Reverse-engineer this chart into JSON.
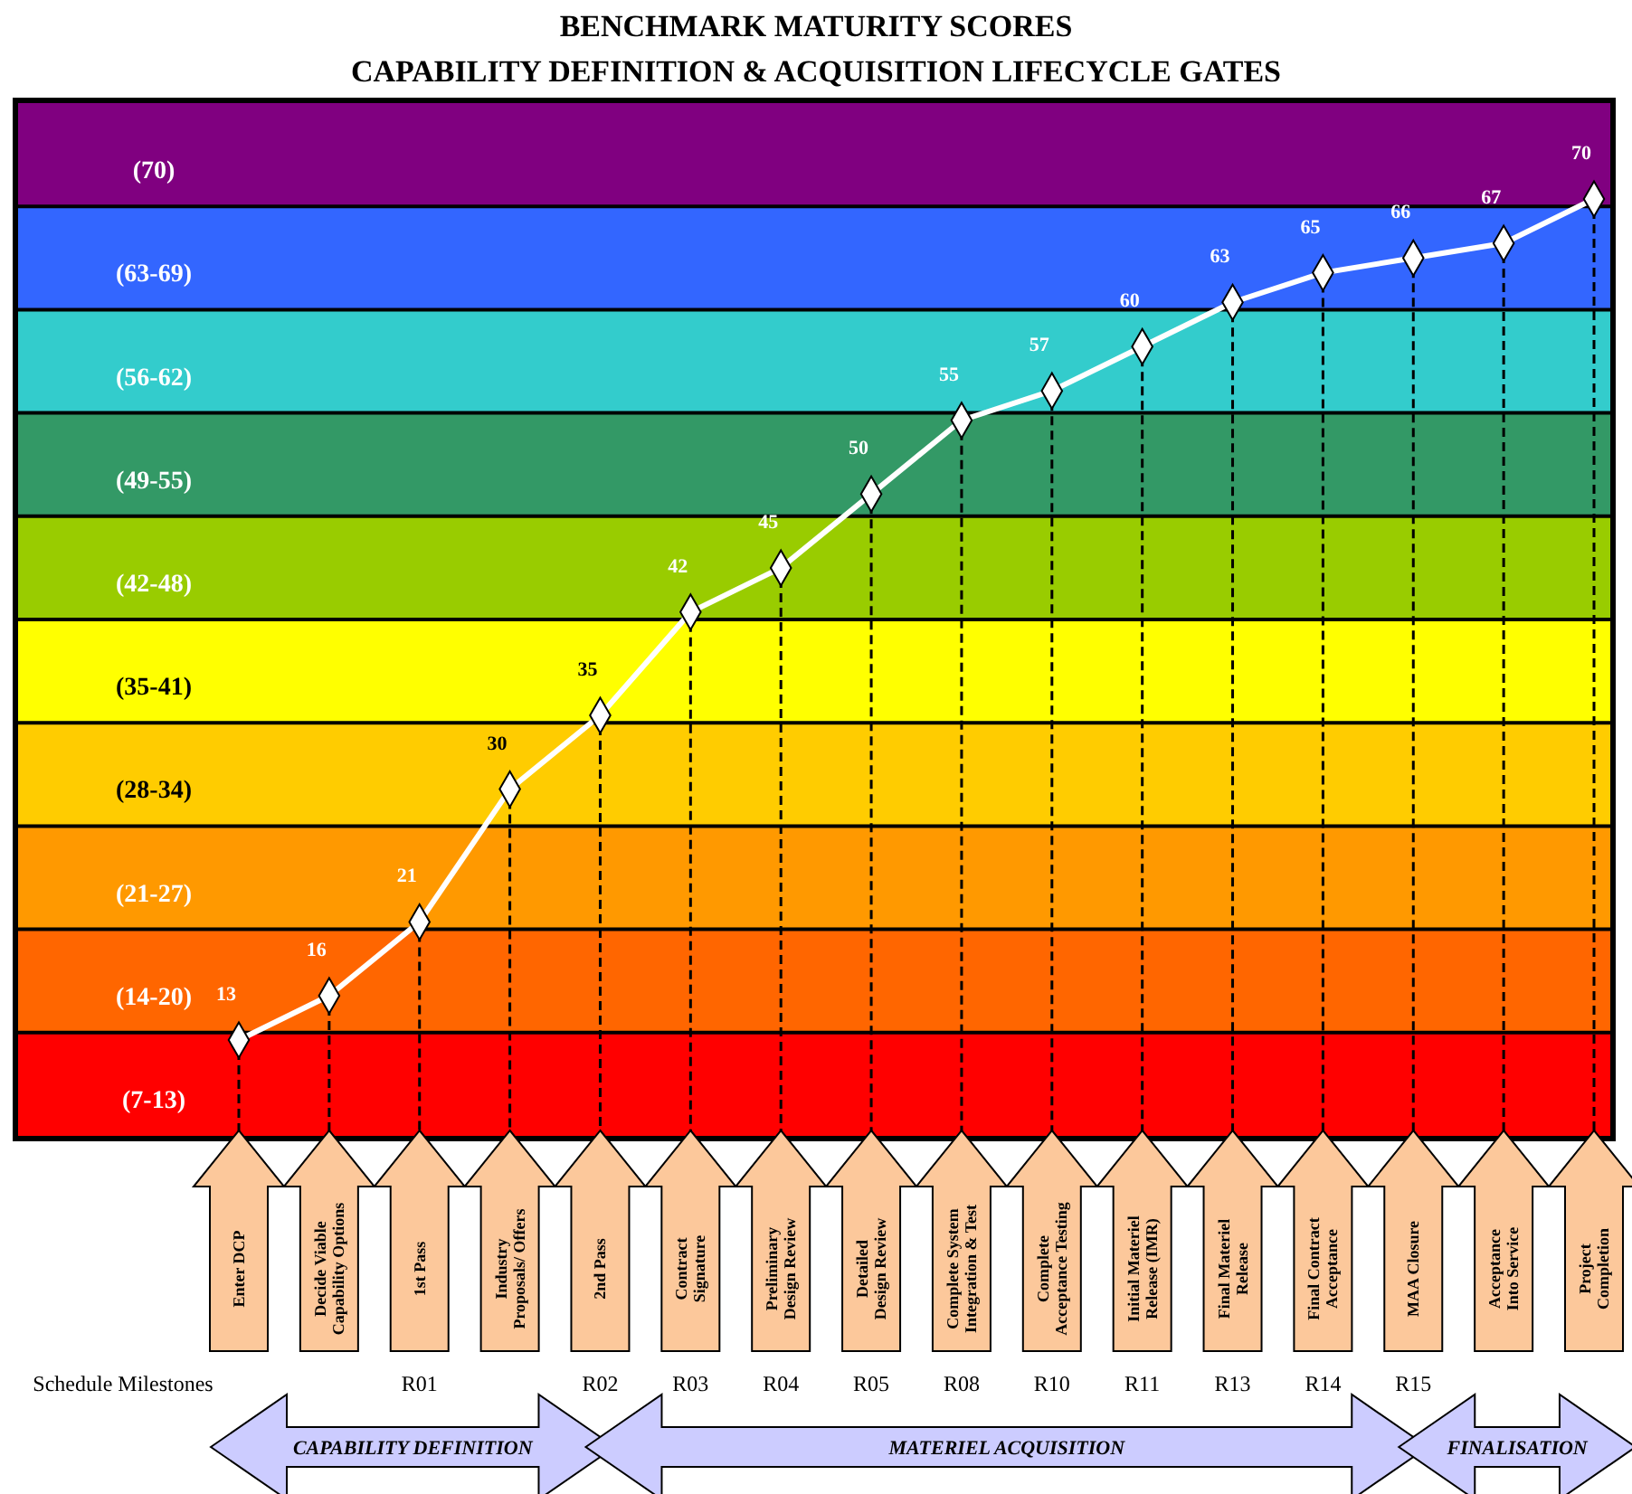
{
  "chart_data": {
    "type": "line",
    "title": "BENCHMARK MATURITY SCORES",
    "subtitle": "CAPABILITY DEFINITION & ACQUISITION LIFECYCLE GATES",
    "categories": [
      "Enter DCP",
      "Decide Viable Capability Options",
      "1st Pass",
      "Industry Proposals/ Offers",
      "2nd Pass",
      "Contract Signature",
      "Preliminary Design Review",
      "Detailed Design Review",
      "Complete System Integration & Test",
      "Complete Acceptance Testing",
      "Initial Materiel Release (IMR)",
      "Final Materiel Release",
      "Final Contract Acceptance",
      "MAA Closure",
      "Acceptance Into Service",
      "Project Completion"
    ],
    "series": [
      {
        "color": "#ffffff",
        "values": [
          13,
          16,
          21,
          30,
          35,
          42,
          45,
          50,
          55,
          57,
          60,
          63,
          65,
          66,
          67,
          70
        ]
      }
    ],
    "ylim": [
      6.5,
      76.5
    ],
    "yticks": [
      {
        "value": 13.5,
        "label": null
      },
      {
        "value": 20.5,
        "label": null
      },
      {
        "value": 27.5,
        "label": null
      },
      {
        "value": 34.5,
        "label": null
      },
      {
        "value": 41.5,
        "label": null
      },
      {
        "value": 48.5,
        "label": null
      },
      {
        "value": 55.5,
        "label": null
      },
      {
        "value": 62.5,
        "label": null
      },
      {
        "value": 69.5,
        "label": null
      }
    ],
    "grid": "y",
    "tick_labels": "x",
    "ref_lines": [
      {
        "axis": "x",
        "value": "Enter DCP",
        "line_style": "dashed",
        "color": "#000000"
      },
      {
        "axis": "x",
        "value": "Decide Viable Capability Options",
        "line_style": "dashed",
        "color": "#000000"
      },
      {
        "axis": "x",
        "value": "1st Pass",
        "line_style": "dashed",
        "color": "#000000"
      },
      {
        "axis": "x",
        "value": "Industry Proposals/ Offers",
        "line_style": "dashed",
        "color": "#000000"
      },
      {
        "axis": "x",
        "value": "2nd Pass",
        "line_style": "dashed",
        "color": "#000000"
      },
      {
        "axis": "x",
        "value": "Contract Signature",
        "line_style": "dashed",
        "color": "#000000"
      },
      {
        "axis": "x",
        "value": "Preliminary Design Review",
        "line_style": "dashed",
        "color": "#000000"
      },
      {
        "axis": "x",
        "value": "Detailed Design Review",
        "line_style": "dashed",
        "color": "#000000"
      },
      {
        "axis": "x",
        "value": "Complete System Integration & Test",
        "line_style": "dashed",
        "color": "#000000"
      },
      {
        "axis": "x",
        "value": "Complete Acceptance Testing",
        "line_style": "dashed",
        "color": "#000000"
      },
      {
        "axis": "x",
        "value": "Initial Materiel Release (IMR)",
        "line_style": "dashed",
        "color": "#000000"
      },
      {
        "axis": "x",
        "value": "Final Materiel Release",
        "line_style": "dashed",
        "color": "#000000"
      },
      {
        "axis": "x",
        "value": "Final Contract Acceptance",
        "line_style": "dashed",
        "color": "#000000"
      },
      {
        "axis": "x",
        "value": "MAA Closure",
        "line_style": "dashed",
        "color": "#000000"
      },
      {
        "axis": "x",
        "value": "Acceptance Into Service",
        "line_style": "dashed",
        "color": "#000000"
      },
      {
        "axis": "x",
        "value": "Project Completion",
        "line_style": "dashed",
        "color": "#000000"
      }
    ],
    "marker": "diamond",
    "line_style": "solid",
    "data_labels": true,
    "bands": [
      {
        "axis": "y",
        "from": 6.5,
        "to": 13.5,
        "label": "(7-13)",
        "color": "#ff0000"
      },
      {
        "axis": "y",
        "from": 13.5,
        "to": 20.5,
        "label": "(14-20)",
        "color": "#ff6600"
      },
      {
        "axis": "y",
        "from": 20.5,
        "to": 27.5,
        "label": "(21-27)",
        "color": "#ff9900"
      },
      {
        "axis": "y",
        "from": 27.5,
        "to": 34.5,
        "label": "(28-34)",
        "color": "#ffcc00"
      },
      {
        "axis": "y",
        "from": 34.5,
        "to": 41.5,
        "label": "(35-41)",
        "color": "#ffff00"
      },
      {
        "axis": "y",
        "from": 41.5,
        "to": 48.5,
        "label": "(42-48)",
        "color": "#99cc00"
      },
      {
        "axis": "y",
        "from": 48.5,
        "to": 55.5,
        "label": "(49-55)",
        "color": "#339966"
      },
      {
        "axis": "y",
        "from": 55.5,
        "to": 62.5,
        "label": "(56-62)",
        "color": "#33cccc"
      },
      {
        "axis": "y",
        "from": 62.5,
        "to": 69.5,
        "label": "(63-69)",
        "color": "#3366ff"
      },
      {
        "axis": "y",
        "from": 69.5,
        "to": 76.5,
        "label": "(70)",
        "color": "#800080"
      }
    ],
    "annotations": [
      "Schedule  Milestones",
      "R01",
      "R02",
      "R03",
      "R04",
      "R05",
      "R08",
      "R10",
      "R11",
      "R13",
      "R14",
      "R15",
      "CAPABILITY DEFINITION",
      "MATERIEL ACQUISITION",
      "FINALISATION"
    ]
  }
}
